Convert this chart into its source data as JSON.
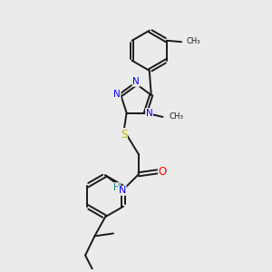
{
  "bg_color": "#ebebeb",
  "bond_color": "#1a1a1a",
  "N_color": "#0000ff",
  "O_color": "#ff0000",
  "S_color": "#bbbb00",
  "H_color": "#008080",
  "line_width": 1.4,
  "figsize": [
    3.0,
    3.0
  ],
  "dpi": 100,
  "xlim": [
    0,
    10
  ],
  "ylim": [
    0,
    10
  ]
}
